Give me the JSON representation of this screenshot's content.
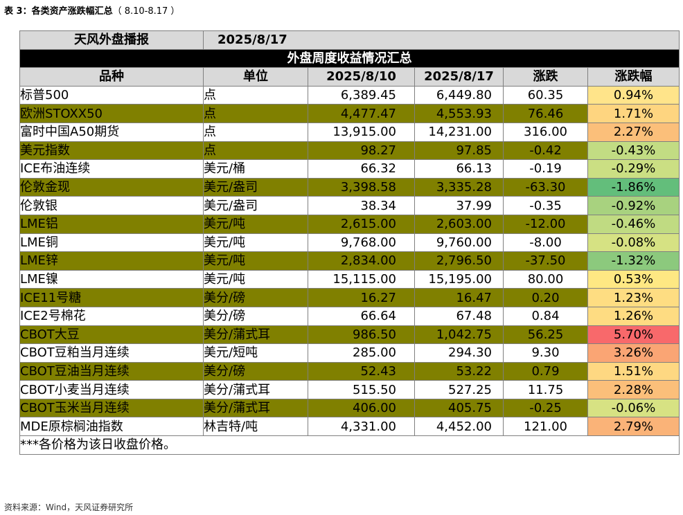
{
  "caption": {
    "label": "表 3：各类资产涨跌幅汇总",
    "range": "（ 8.10-8.17 ）"
  },
  "report": {
    "name": "天风外盘播报",
    "date": "2025/8/17",
    "title": "外盘周度收益情况汇总"
  },
  "headers": [
    "品种",
    "单位",
    "2025/8/10",
    "2025/8/17",
    "涨跌",
    "涨跌幅"
  ],
  "rows": [
    {
      "name": "标普500",
      "unit": "点",
      "prev": "6,389.45",
      "curr": "6,449.80",
      "chg": "60.35",
      "pct": "0.94%",
      "color": "#ffe48a",
      "olive": false
    },
    {
      "name": "欧洲STOXX50",
      "unit": "点",
      "prev": "4,477.47",
      "curr": "4,553.93",
      "chg": "76.46",
      "pct": "1.71%",
      "color": "#fed580",
      "olive": true
    },
    {
      "name": "富时中国A50期货",
      "unit": "点",
      "prev": "13,915.00",
      "curr": "14,231.00",
      "chg": "316.00",
      "pct": "2.27%",
      "color": "#fbbf7a",
      "olive": false
    },
    {
      "name": "美元指数",
      "unit": "点",
      "prev": "98.27",
      "curr": "97.85",
      "chg": "-0.42",
      "pct": "-0.43%",
      "color": "#c2dc83",
      "olive": true
    },
    {
      "name": "ICE布油连续",
      "unit": "美元/桶",
      "prev": "66.32",
      "curr": "66.13",
      "chg": "-0.19",
      "pct": "-0.29%",
      "color": "#cbdf83",
      "olive": false
    },
    {
      "name": "伦敦金现",
      "unit": "美元/盎司",
      "prev": "3,398.58",
      "curr": "3,335.28",
      "chg": "-63.30",
      "pct": "-1.86%",
      "color": "#63be7b",
      "olive": true
    },
    {
      "name": "伦敦银",
      "unit": "美元/盎司",
      "prev": "38.34",
      "curr": "37.99",
      "chg": "-0.35",
      "pct": "-0.92%",
      "color": "#a8d27f",
      "olive": false
    },
    {
      "name": "LME铝",
      "unit": "美元/吨",
      "prev": "2,615.00",
      "curr": "2,603.00",
      "chg": "-12.00",
      "pct": "-0.46%",
      "color": "#c0db82",
      "olive": true
    },
    {
      "name": "LME铜",
      "unit": "美元/吨",
      "prev": "9,768.00",
      "curr": "9,760.00",
      "chg": "-8.00",
      "pct": "-0.08%",
      "color": "#d6e283",
      "olive": false
    },
    {
      "name": "LME锌",
      "unit": "美元/吨",
      "prev": "2,834.00",
      "curr": "2,796.50",
      "chg": "-37.50",
      "pct": "-1.32%",
      "color": "#8cc97d",
      "olive": true
    },
    {
      "name": "LME镍",
      "unit": "美元/吨",
      "prev": "15,115.00",
      "curr": "15,195.00",
      "chg": "80.00",
      "pct": "0.53%",
      "color": "#fee883",
      "olive": false
    },
    {
      "name": "ICE11号糖",
      "unit": "美分/磅",
      "prev": "16.27",
      "curr": "16.47",
      "chg": "0.20",
      "pct": "1.23%",
      "color": "#fedd82",
      "olive": true
    },
    {
      "name": "ICE2号棉花",
      "unit": "美分/磅",
      "prev": "66.64",
      "curr": "67.48",
      "chg": "0.84",
      "pct": "1.26%",
      "color": "#fedc82",
      "olive": false
    },
    {
      "name": "CBOT大豆",
      "unit": "美分/蒲式耳",
      "prev": "986.50",
      "curr": "1,042.75",
      "chg": "56.25",
      "pct": "5.70%",
      "color": "#f8696b",
      "olive": true
    },
    {
      "name": "CBOT豆粕当月连续",
      "unit": "美元/短吨",
      "prev": "285.00",
      "curr": "294.30",
      "chg": "9.30",
      "pct": "3.26%",
      "color": "#faa574",
      "olive": false
    },
    {
      "name": "CBOT豆油当月连续",
      "unit": "美分/磅",
      "prev": "52.43",
      "curr": "53.22",
      "chg": "0.79",
      "pct": "1.51%",
      "color": "#fed882",
      "olive": true
    },
    {
      "name": "CBOT小麦当月连续",
      "unit": "美分/蒲式耳",
      "prev": "515.50",
      "curr": "527.25",
      "chg": "11.75",
      "pct": "2.28%",
      "color": "#fbbf7a",
      "olive": false
    },
    {
      "name": "CBOT玉米当月连续",
      "unit": "美分/蒲式耳",
      "prev": "406.00",
      "curr": "405.75",
      "chg": "-0.25",
      "pct": "-0.06%",
      "color": "#d7e283",
      "olive": true
    },
    {
      "name": "MDE原棕榈油指数",
      "unit": "林吉特/吨",
      "prev": "4,331.00",
      "curr": "4,452.00",
      "chg": "121.00",
      "pct": "2.79%",
      "color": "#fab378",
      "olive": false
    }
  ],
  "note": "***各价格为该日收盘价格。",
  "source": "资料来源：Wind，天风证券研究所"
}
